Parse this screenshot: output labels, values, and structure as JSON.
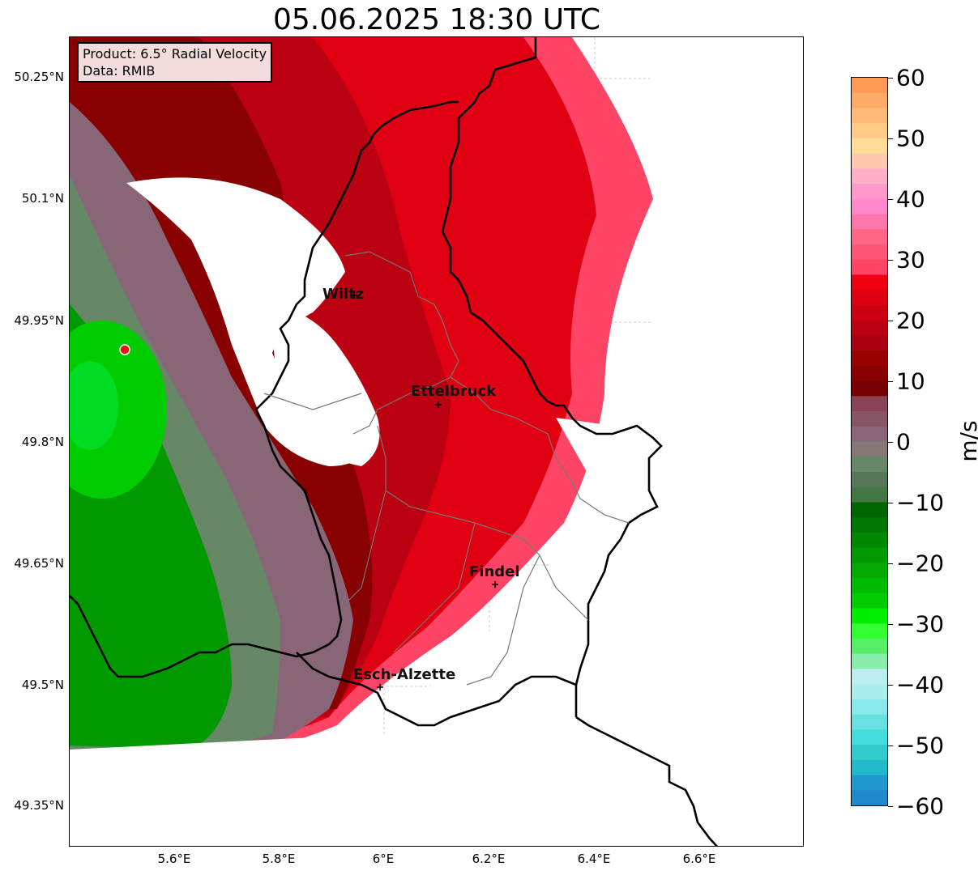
{
  "title": "05.06.2025 18:30 UTC",
  "info": {
    "product": "Product: 6.5° Radial Velocity",
    "data_source": "Data: RMIB"
  },
  "axes": {
    "lat_ticks": [
      "50.25°N",
      "50.1°N",
      "49.95°N",
      "49.8°N",
      "49.65°N",
      "49.5°N",
      "49.35°N"
    ],
    "lon_ticks": [
      "5.6°E",
      "5.8°E",
      "6°E",
      "6.2°E",
      "6.4°E",
      "6.6°E"
    ]
  },
  "colorbar": {
    "unit": "m/s",
    "ticks": [
      "60",
      "50",
      "40",
      "30",
      "20",
      "10",
      "0",
      "−10",
      "−20",
      "−30",
      "−40",
      "−50",
      "−60"
    ],
    "range": [
      -60,
      60
    ],
    "colors_top_to_bottom": [
      "#ff9955",
      "#ffaa66",
      "#ffbb77",
      "#ffcc88",
      "#ffdd99",
      "#ffc8b0",
      "#ffb0c8",
      "#ff99cc",
      "#ff88cc",
      "#ff77aa",
      "#ff6688",
      "#ff5577",
      "#ff4466",
      "#ee0011",
      "#dd0011",
      "#cc0011",
      "#bb0011",
      "#aa0011",
      "#990000",
      "#880000",
      "#770000",
      "#884455",
      "#885566",
      "#886677",
      "#887777",
      "#668866",
      "#557755",
      "#447744",
      "#006600",
      "#007700",
      "#008800",
      "#009900",
      "#00aa00",
      "#00bb00",
      "#00cc00",
      "#00ee00",
      "#33ff33",
      "#55ee66",
      "#88eeaa",
      "#bbeeee",
      "#aaeeee",
      "#88e8e8",
      "#66e0e0",
      "#44dddd",
      "#33cccc",
      "#22bbcc",
      "#2299cc",
      "#2288cc"
    ]
  },
  "cities": [
    {
      "name": "Wiltz"
    },
    {
      "name": "Ettelbruck"
    },
    {
      "name": "Findel"
    },
    {
      "name": "Esch-Alzette"
    }
  ],
  "legend_colors": {
    "inbound_strong": "#00cc00",
    "outbound_strong": "#ee0011",
    "near_zero": "#886677",
    "radar_marker": "#ee1111"
  }
}
